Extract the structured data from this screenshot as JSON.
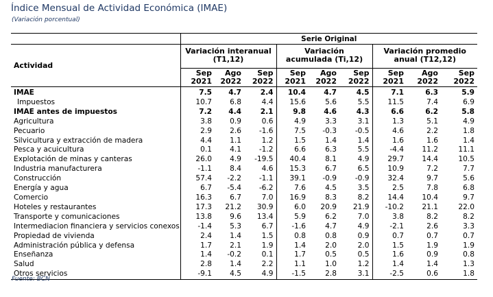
{
  "title": "Índice Mensual de Actividad Económica (IMAE)",
  "subtitle": "(Variación porcentual)",
  "source": "Fuente: BCN",
  "header": {
    "serie": "Serie Original",
    "actividad": "Actividad",
    "groups": [
      {
        "line1": "Variación interanual",
        "line2": "(T1,12)"
      },
      {
        "line1": "Variación",
        "line2": "acumulada (Ti,12)"
      },
      {
        "line1": "Variación promedio",
        "line2": "anual (T12,12)"
      }
    ],
    "periods": [
      {
        "m": "Sep",
        "y": "2021"
      },
      {
        "m": "Ago",
        "y": "2022"
      },
      {
        "m": "Sep",
        "y": "2022"
      },
      {
        "m": "Sep",
        "y": "2021"
      },
      {
        "m": "Ago",
        "y": "2022"
      },
      {
        "m": "Sep",
        "y": "2022"
      },
      {
        "m": "Sep",
        "y": "2021"
      },
      {
        "m": "Ago",
        "y": "2022"
      },
      {
        "m": "Sep",
        "y": "2022"
      }
    ]
  },
  "rows": [
    {
      "label": "IMAE",
      "values": [
        "7.5",
        "4.7",
        "2.4",
        "10.4",
        "4.7",
        "4.5",
        "7.1",
        "6.3",
        "5.9"
      ],
      "bold": true
    },
    {
      "label": "Impuestos",
      "values": [
        "10.7",
        "6.8",
        "4.4",
        "15.6",
        "5.6",
        "5.5",
        "11.5",
        "7.4",
        "6.9"
      ],
      "indent": true
    },
    {
      "label": "IMAE antes de impuestos",
      "values": [
        "7.2",
        "4.4",
        "2.1",
        "9.8",
        "4.6",
        "4.3",
        "6.6",
        "6.2",
        "5.8"
      ],
      "bold": true
    },
    {
      "label": "Agricultura",
      "values": [
        "3.8",
        "0.9",
        "0.6",
        "4.9",
        "3.3",
        "3.1",
        "1.3",
        "5.1",
        "4.9"
      ]
    },
    {
      "label": "Pecuario",
      "values": [
        "2.9",
        "2.6",
        "-1.6",
        "7.5",
        "-0.3",
        "-0.5",
        "4.6",
        "2.2",
        "1.8"
      ]
    },
    {
      "label": "Silvicultura y extracción de madera",
      "values": [
        "4.4",
        "1.1",
        "1.2",
        "1.5",
        "1.4",
        "1.4",
        "1.6",
        "1.6",
        "1.4"
      ]
    },
    {
      "label": "Pesca y acuicultura",
      "values": [
        "0.1",
        "4.1",
        "-1.2",
        "6.6",
        "6.3",
        "5.5",
        "-4.4",
        "11.2",
        "11.1"
      ]
    },
    {
      "label": "Explotación de minas y canteras",
      "values": [
        "26.0",
        "4.9",
        "-19.5",
        "40.4",
        "8.1",
        "4.9",
        "29.7",
        "14.4",
        "10.5"
      ]
    },
    {
      "label": "Industria manufacturera",
      "values": [
        "-1.1",
        "8.4",
        "4.6",
        "15.3",
        "6.7",
        "6.5",
        "10.9",
        "7.2",
        "7.7"
      ]
    },
    {
      "label": "Construcción",
      "values": [
        "57.4",
        "-2.2",
        "-1.1",
        "39.1",
        "-0.9",
        "-0.9",
        "32.4",
        "9.7",
        "5.6"
      ]
    },
    {
      "label": "Energía y agua",
      "values": [
        "6.7",
        "-5.4",
        "-6.2",
        "7.6",
        "4.5",
        "3.5",
        "2.5",
        "7.8",
        "6.8"
      ]
    },
    {
      "label": "Comercio",
      "values": [
        "16.3",
        "6.7",
        "7.0",
        "16.9",
        "8.3",
        "8.2",
        "14.4",
        "10.4",
        "9.7"
      ]
    },
    {
      "label": "Hoteles y restaurantes",
      "values": [
        "17.3",
        "21.2",
        "30.9",
        "6.0",
        "20.9",
        "21.9",
        "-10.2",
        "21.1",
        "22.0"
      ]
    },
    {
      "label": "Transporte y comunicaciones",
      "values": [
        "13.8",
        "9.6",
        "13.4",
        "5.9",
        "6.2",
        "7.0",
        "3.8",
        "8.2",
        "8.2"
      ]
    },
    {
      "label": "Intermediacion financiera y servicios conexos",
      "values": [
        "-1.4",
        "5.3",
        "6.7",
        "-1.6",
        "4.7",
        "4.9",
        "-2.1",
        "2.6",
        "3.3"
      ]
    },
    {
      "label": "Propiedad de vivienda",
      "values": [
        "2.4",
        "1.4",
        "1.5",
        "0.8",
        "0.8",
        "0.9",
        "0.7",
        "0.7",
        "0.7"
      ]
    },
    {
      "label": "Administración pública y defensa",
      "values": [
        "1.7",
        "2.1",
        "1.9",
        "1.4",
        "2.0",
        "2.0",
        "1.5",
        "1.9",
        "1.9"
      ]
    },
    {
      "label": "Enseñanza",
      "values": [
        "1.4",
        "-0.2",
        "0.1",
        "1.7",
        "0.5",
        "0.5",
        "1.6",
        "0.9",
        "0.8"
      ]
    },
    {
      "label": "Salud",
      "values": [
        "2.8",
        "1.4",
        "2.2",
        "1.1",
        "1.0",
        "1.2",
        "1.4",
        "1.4",
        "1.3"
      ]
    },
    {
      "label": "Otros servicios",
      "values": [
        "-9.1",
        "4.5",
        "4.9",
        "-1.5",
        "2.8",
        "3.1",
        "-2.5",
        "0.6",
        "1.8"
      ]
    }
  ]
}
